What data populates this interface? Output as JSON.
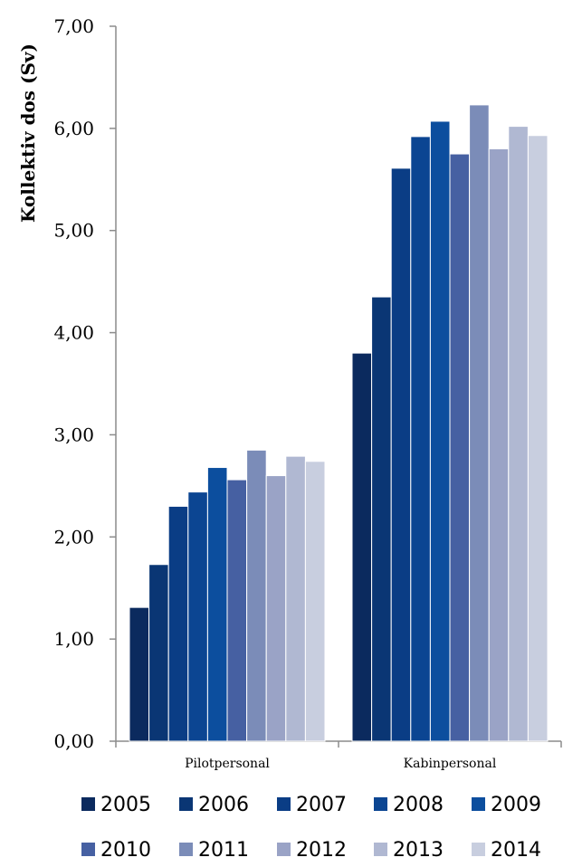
{
  "chart_data": {
    "type": "bar",
    "ylabel": "Kollektiv dos (Sv)",
    "ylim": [
      0,
      7
    ],
    "y_ticks": [
      "0,00",
      "1,00",
      "2,00",
      "3,00",
      "4,00",
      "5,00",
      "6,00",
      "7,00"
    ],
    "categories": [
      "Pilotpersonal",
      "Kabinpersonal"
    ],
    "legend_position": "bottom",
    "grid": false,
    "series": [
      {
        "name": "2005",
        "color": "#0b2a5e",
        "values": [
          1.31,
          3.8
        ]
      },
      {
        "name": "2006",
        "color": "#0a3674",
        "values": [
          1.73,
          4.35
        ]
      },
      {
        "name": "2007",
        "color": "#0a3d85",
        "values": [
          2.3,
          5.61
        ]
      },
      {
        "name": "2008",
        "color": "#0b4592",
        "values": [
          2.44,
          5.92
        ]
      },
      {
        "name": "2009",
        "color": "#0c4e9e",
        "values": [
          2.68,
          6.07
        ]
      },
      {
        "name": "2010",
        "color": "#4660a2",
        "values": [
          2.56,
          5.75
        ]
      },
      {
        "name": "2011",
        "color": "#7b8cb8",
        "values": [
          2.85,
          6.23
        ]
      },
      {
        "name": "2012",
        "color": "#9aa3c6",
        "values": [
          2.6,
          5.8
        ]
      },
      {
        "name": "2013",
        "color": "#b0b8d2",
        "values": [
          2.79,
          6.02
        ]
      },
      {
        "name": "2014",
        "color": "#c8cedf",
        "values": [
          2.74,
          5.93
        ]
      }
    ]
  }
}
